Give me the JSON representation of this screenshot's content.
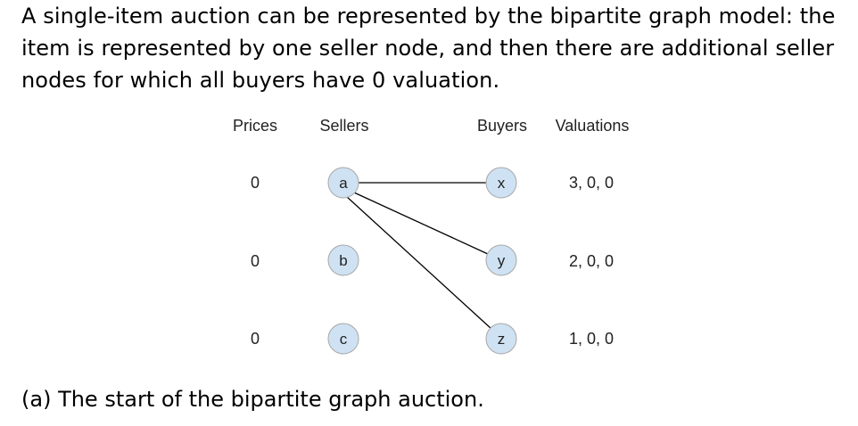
{
  "intro": {
    "lines": [
      "A single-item auction can be represented by the bipartite graph model: the",
      "item is represented by one seller node, and then there are additional seller",
      "nodes for which all buyers have 0 valuation."
    ]
  },
  "diagram": {
    "headers": {
      "prices": "Prices",
      "sellers": "Sellers",
      "buyers": "Buyers",
      "valuations": "Valuations"
    },
    "rows": [
      {
        "price": "0",
        "seller": "a",
        "buyer": "x",
        "valuation": "3, 0, 0"
      },
      {
        "price": "0",
        "seller": "b",
        "buyer": "y",
        "valuation": "2, 0, 0"
      },
      {
        "price": "0",
        "seller": "c",
        "buyer": "z",
        "valuation": "1, 0, 0"
      }
    ],
    "edges": [
      {
        "from": "a",
        "to": "x"
      },
      {
        "from": "a",
        "to": "y"
      },
      {
        "from": "a",
        "to": "z"
      }
    ],
    "node_fill": "#cfe2f3",
    "node_stroke": "#a7a7a7",
    "edge_color": "#000000"
  },
  "caption": "(a) The start of the bipartite graph auction."
}
